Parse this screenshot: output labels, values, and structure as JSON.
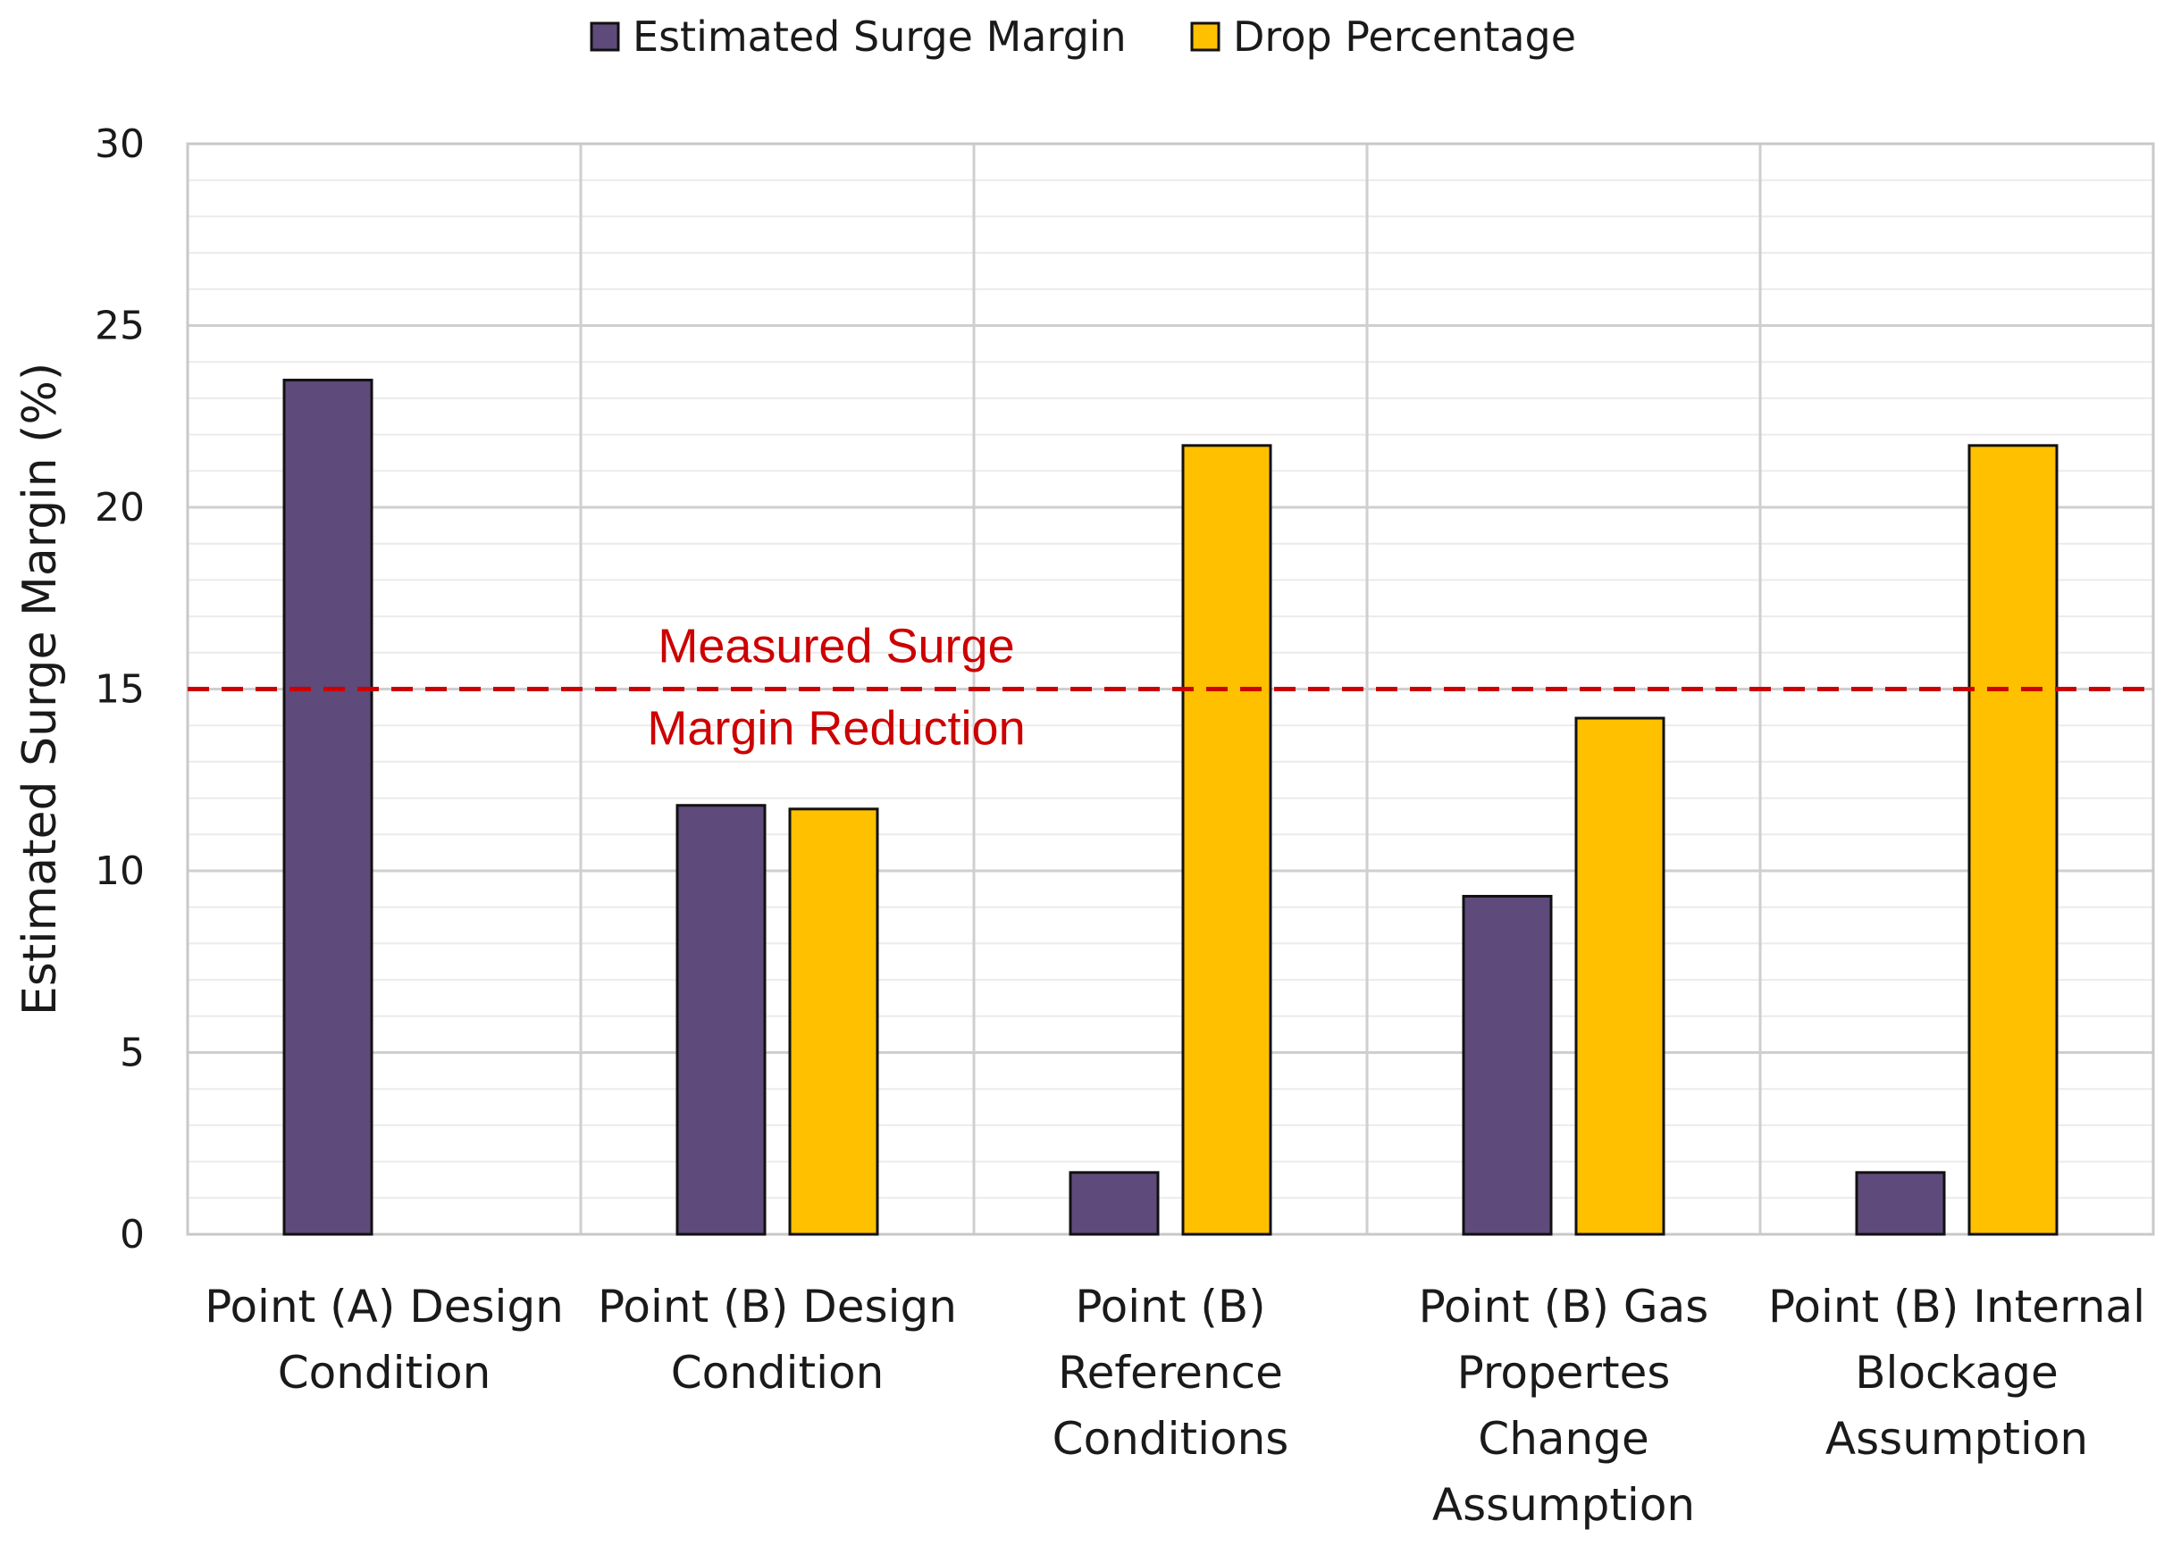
{
  "chart_data": {
    "type": "bar",
    "title": "",
    "xlabel": "",
    "ylabel": "Estimated Surge Margin (%)",
    "ylim": [
      0,
      30
    ],
    "yticks": [
      "0",
      "5",
      "10",
      "15",
      "20",
      "25",
      "30"
    ],
    "minor_gridlines": true,
    "legend_position": "top-center",
    "categories": [
      [
        "Point (A) Design",
        "Condition"
      ],
      [
        "Point (B) Design",
        "Condition"
      ],
      [
        "Point (B)",
        "Reference",
        "Conditions"
      ],
      [
        "Point (B) Gas",
        "Propertes",
        "Change",
        "Assumption"
      ],
      [
        "Point (B) Internal",
        "Blockage",
        "Assumption"
      ]
    ],
    "series": [
      {
        "name": "Estimated Surge Margin",
        "color": "#5e4a7b",
        "values": [
          23.5,
          11.8,
          1.7,
          9.3,
          1.7
        ]
      },
      {
        "name": "Drop Percentage",
        "color": "#ffc000",
        "values": [
          null,
          11.7,
          21.7,
          14.2,
          21.7
        ]
      }
    ],
    "reference_line": {
      "value": 15,
      "color": "#cc0000",
      "style": "dashed",
      "label_lines": [
        "Measured Surge",
        "Margin Reduction"
      ]
    }
  }
}
